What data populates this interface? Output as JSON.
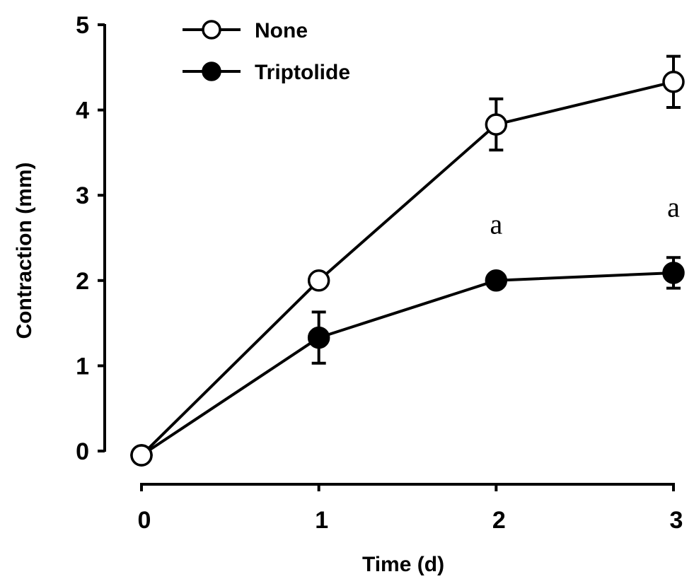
{
  "chart_data": {
    "type": "line",
    "xlabel": "Time (d)",
    "ylabel": "Contraction (mm)",
    "x": [
      0,
      1,
      2,
      3
    ],
    "x_ticks": [
      "0",
      "1",
      "2",
      "3"
    ],
    "y_ticks": [
      "0",
      "1",
      "2",
      "3",
      "4",
      "5"
    ],
    "xlim": [
      0,
      3
    ],
    "ylim": [
      0,
      5
    ],
    "grid": false,
    "legend": "top-left",
    "series": [
      {
        "name": "None",
        "marker": "open-circle",
        "color": "#000000",
        "values": [
          -0.05,
          2.0,
          3.83,
          4.33
        ],
        "error": [
          0,
          0,
          0.3,
          0.3
        ]
      },
      {
        "name": "Triptolide",
        "marker": "filled-circle",
        "color": "#000000",
        "values": [
          -0.05,
          1.33,
          2.0,
          2.09
        ],
        "error": [
          0,
          0.3,
          0,
          0.18
        ]
      }
    ],
    "annotations": [
      {
        "text": "a",
        "x": 2,
        "y": 2.55
      },
      {
        "text": "a",
        "x": 3,
        "y": 2.75
      }
    ]
  }
}
